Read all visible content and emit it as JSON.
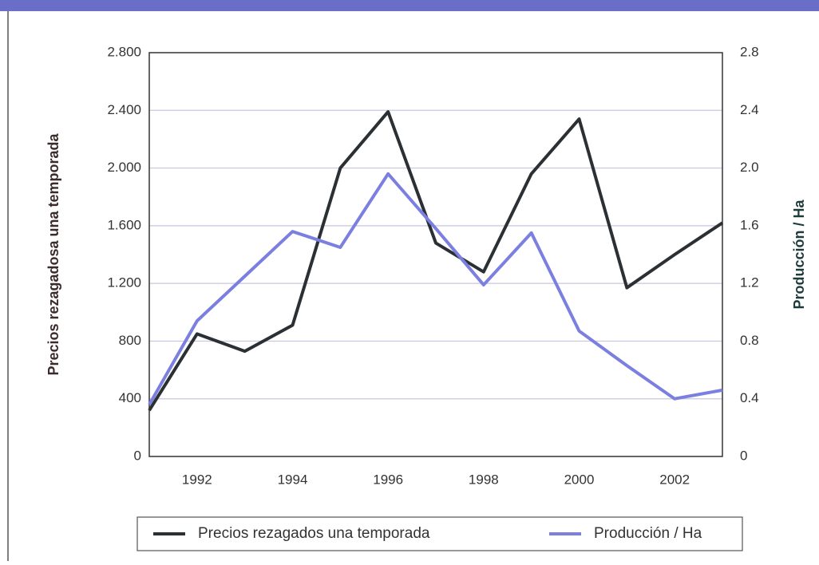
{
  "chart_data": {
    "type": "line",
    "y_label": "Precios rezagadosa una temporada",
    "y2_label": "Producción / Ha",
    "x": [
      1991,
      1992,
      1993,
      1994,
      1995,
      1996,
      1997,
      1998,
      1999,
      2000,
      2001,
      2002,
      2003
    ],
    "xlim": [
      1991,
      2003
    ],
    "xticks": [
      1992,
      1994,
      1996,
      1998,
      2000,
      2002
    ],
    "ylim": [
      0,
      2800
    ],
    "yticks": [
      0,
      400,
      800,
      {
        "value": 1200,
        "label": "1.200"
      },
      {
        "value": 1600,
        "label": "1.600"
      },
      {
        "value": 2000,
        "label": "2.000"
      },
      {
        "value": 2400,
        "label": "2.400"
      },
      {
        "value": 2800,
        "label": "2.800"
      }
    ],
    "y2lim": [
      0,
      2.8
    ],
    "y2ticks": [
      0,
      0.4,
      0.8,
      1.2,
      1.6,
      {
        "value": 2,
        "label": "2.0"
      },
      2.4,
      2.8
    ],
    "grid": true,
    "legend": "bottom",
    "series": [
      {
        "name": "Precios rezagados una temporada",
        "color": "#2b3034",
        "values": [
          320,
          850,
          730,
          910,
          2000,
          2390,
          1480,
          1280,
          1960,
          2340,
          1170,
          1400,
          1620
        ]
      },
      {
        "name": "Producción / Ha",
        "color": "#7b7fe0",
        "axis": "y2",
        "values": [
          0.36,
          0.94,
          1.25,
          1.56,
          1.45,
          1.96,
          1.58,
          1.19,
          1.55,
          0.87,
          0.63,
          0.4,
          0.46
        ]
      }
    ]
  }
}
